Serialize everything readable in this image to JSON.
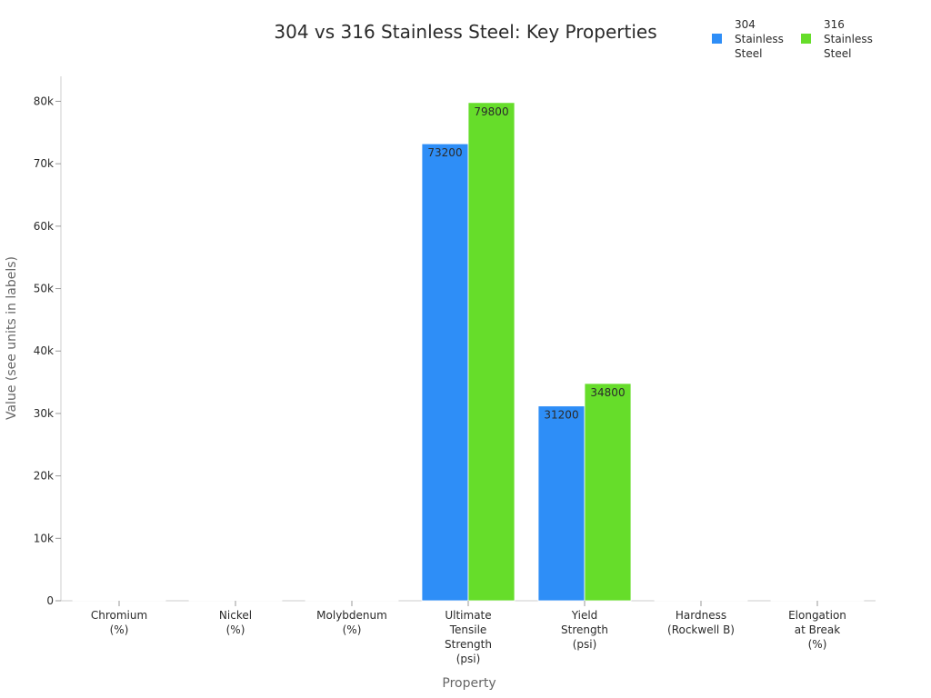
{
  "chart_data": {
    "type": "bar",
    "title": "304 vs 316 Stainless Steel: Key Properties",
    "xlabel": "Property",
    "ylabel": "Value (see units in labels)",
    "categories": [
      [
        "Chromium",
        "(%)"
      ],
      [
        "Nickel",
        "(%)"
      ],
      [
        "Molybdenum",
        "(%)"
      ],
      [
        "Ultimate",
        "Tensile",
        "Strength",
        "(psi)"
      ],
      [
        "Yield",
        "Strength",
        "(psi)"
      ],
      [
        "Hardness",
        "(Rockwell B)"
      ],
      [
        "Elongation",
        "at Break",
        "(%)"
      ]
    ],
    "series": [
      {
        "name": [
          "304",
          "Stainless",
          "Steel"
        ],
        "color": "#2e8ef7",
        "values": [
          18,
          8,
          0,
          73200,
          31200,
          70,
          70
        ],
        "labels": [
          "",
          "",
          "",
          "73200",
          "31200",
          "",
          ""
        ]
      },
      {
        "name": [
          "316",
          "Stainless",
          "Steel"
        ],
        "color": "#66dd2a",
        "values": [
          16,
          10,
          2,
          79800,
          34800,
          79,
          60
        ],
        "labels": [
          "",
          "",
          "",
          "79800",
          "34800",
          "",
          ""
        ]
      }
    ],
    "ylim": [
      0,
      84000
    ],
    "yticks": [
      0,
      10000,
      20000,
      30000,
      40000,
      50000,
      60000,
      70000,
      80000
    ],
    "ytick_labels": [
      "0",
      "10k",
      "20k",
      "30k",
      "40k",
      "50k",
      "60k",
      "70k",
      "80k"
    ],
    "legend_position": "top-right"
  }
}
